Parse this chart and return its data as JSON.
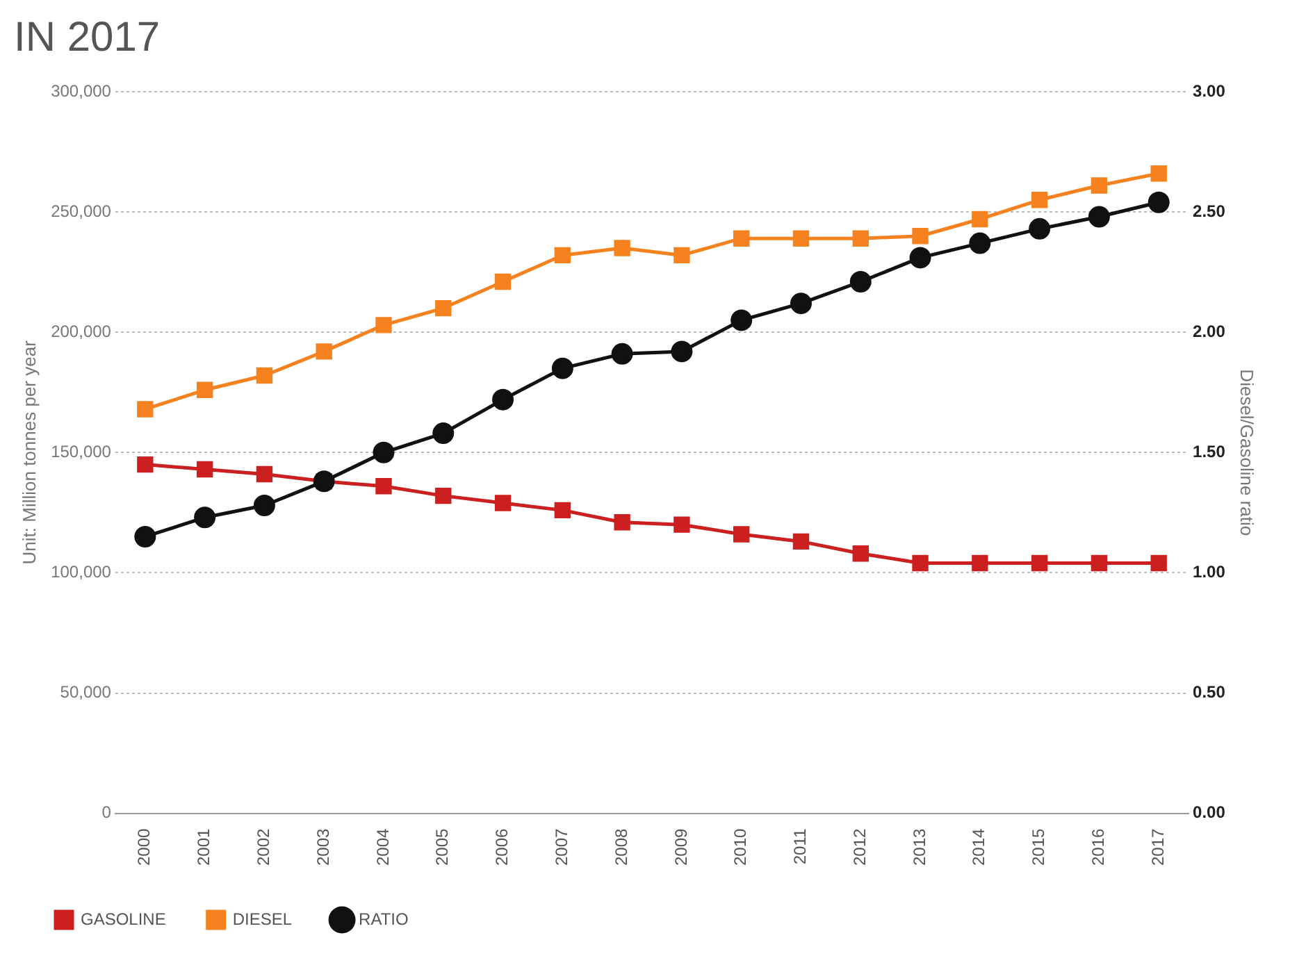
{
  "chart_data": {
    "type": "line",
    "title": "IN 2017",
    "ylabel": "Unit: Million tonnes per year",
    "y2label": "Diesel/Gasoline ratio",
    "categories": [
      "2000",
      "2001",
      "2002",
      "2003",
      "2004",
      "2005",
      "2006",
      "2007",
      "2008",
      "2009",
      "2010",
      "2011",
      "2012",
      "2013",
      "2014",
      "2015",
      "2016",
      "2017"
    ],
    "series": [
      {
        "name": "GASOLINE",
        "color": "#cc1f1f",
        "marker": "square",
        "values": [
          145000,
          143000,
          141000,
          138000,
          136000,
          132000,
          129000,
          126000,
          121000,
          120000,
          116000,
          113000,
          108000,
          104000,
          104000,
          104000,
          104000,
          104000
        ]
      },
      {
        "name": "DIESEL",
        "color": "#f5821f",
        "marker": "square",
        "values": [
          168000,
          176000,
          182000,
          192000,
          203000,
          210000,
          221000,
          232000,
          235000,
          232000,
          239000,
          239000,
          239000,
          240000,
          247000,
          255000,
          261000,
          266000
        ]
      },
      {
        "name": "RATIO",
        "color": "#111111",
        "marker": "circle",
        "axis": "y2",
        "values": [
          1.15,
          1.23,
          1.28,
          1.38,
          1.5,
          1.58,
          1.72,
          1.85,
          1.91,
          1.92,
          2.05,
          2.12,
          2.21,
          2.31,
          2.37,
          2.43,
          2.48,
          2.54
        ]
      }
    ],
    "ylim": [
      0,
      300000
    ],
    "yticks": [
      {
        "value": 0,
        "label": "0"
      },
      {
        "value": 50000,
        "label": "50,000"
      },
      {
        "value": 100000,
        "label": "100,000"
      },
      {
        "value": 150000,
        "label": "150,000"
      },
      {
        "value": 200000,
        "label": "200,000"
      },
      {
        "value": 250000,
        "label": "250,000"
      },
      {
        "value": 300000,
        "label": "300,000"
      }
    ],
    "y2lim": [
      0,
      3
    ],
    "y2ticks": [
      {
        "value": 0,
        "label": "0.00"
      },
      {
        "value": 0.5,
        "label": "0.50"
      },
      {
        "value": 1,
        "label": "1.00"
      },
      {
        "value": 1.5,
        "label": "1.50"
      },
      {
        "value": 2,
        "label": "2.00"
      },
      {
        "value": 2.5,
        "label": "2.50"
      },
      {
        "value": 3,
        "label": "3.00"
      }
    ],
    "grid": "y",
    "legend": "bottom left",
    "line_style": "solid"
  }
}
